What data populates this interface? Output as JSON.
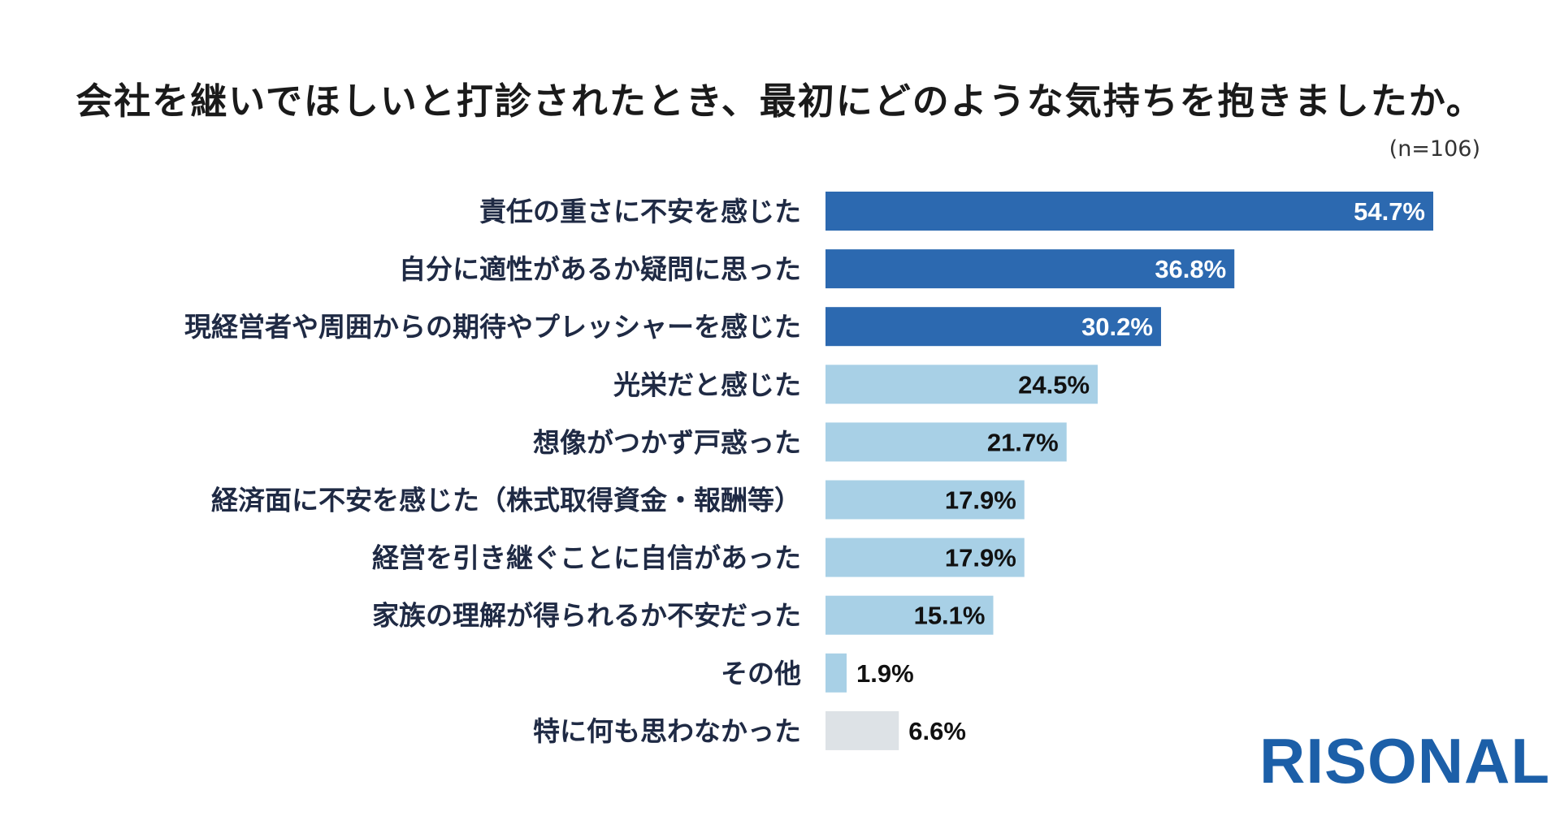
{
  "title": "会社を継いでほしいと打診されたとき、最初にどのような気持ちを抱きましたか。",
  "sample_note": "(n=106)",
  "logo_text": "RISONAL",
  "colors": {
    "dark_bar": "#2c69b0",
    "light_bar": "#a8d0e6",
    "gray_bar": "#dde2e6",
    "category_text": "#1f2a44",
    "logo": "#1c5fa8"
  },
  "chart_data": {
    "type": "bar",
    "orientation": "horizontal",
    "title": "会社を継いでほしいと打診されたとき、最初にどのような気持ちを抱きましたか。",
    "xlabel": "",
    "ylabel": "",
    "xlim": [
      0,
      54.7
    ],
    "grid": false,
    "legend": "none",
    "categories": [
      "責任の重さに不安を感じた",
      "自分に適性があるか疑問に思った",
      "現経営者や周囲からの期待やプレッシャーを感じた",
      "光栄だと感じた",
      "想像がつかず戸惑った",
      "経済面に不安を感じた（株式取得資金・報酬等）",
      "経営を引き継ぐことに自信があった",
      "家族の理解が得られるか不安だった",
      "その他",
      "特に何も思わなかった"
    ],
    "values": [
      54.7,
      36.8,
      30.2,
      24.5,
      21.7,
      17.9,
      17.9,
      15.1,
      1.9,
      6.6
    ],
    "value_labels": [
      "54.7%",
      "36.8%",
      "30.2%",
      "24.5%",
      "21.7%",
      "17.9%",
      "17.9%",
      "15.1%",
      "1.9%",
      "6.6%"
    ],
    "bar_colors": [
      "#2c69b0",
      "#2c69b0",
      "#2c69b0",
      "#a8d0e6",
      "#a8d0e6",
      "#a8d0e6",
      "#a8d0e6",
      "#a8d0e6",
      "#a8d0e6",
      "#dde2e6"
    ],
    "label_colors": [
      "#ffffff",
      "#ffffff",
      "#ffffff",
      "#111111",
      "#111111",
      "#111111",
      "#111111",
      "#111111",
      "#111111",
      "#111111"
    ]
  }
}
